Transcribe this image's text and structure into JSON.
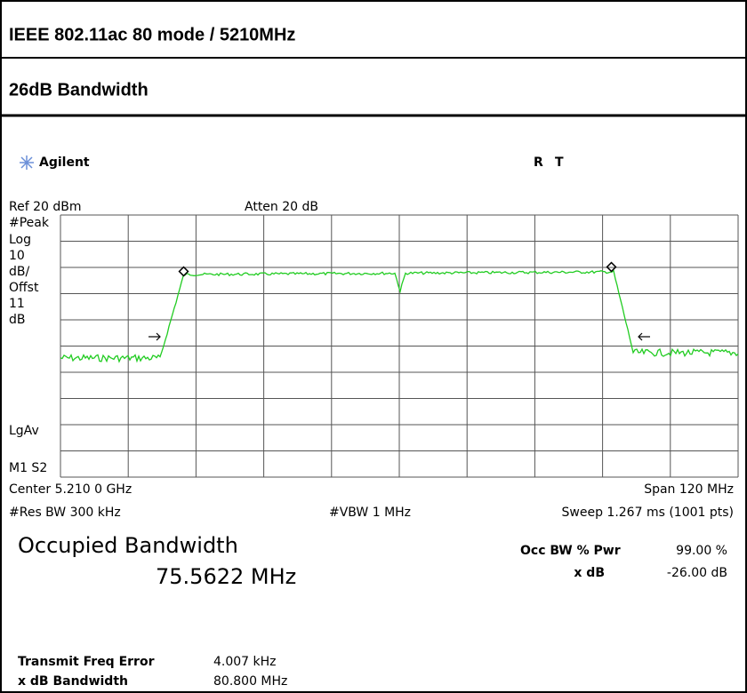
{
  "header": {
    "title": "IEEE 802.11ac 80 mode / 5210MHz",
    "subtitle": "26dB Bandwidth"
  },
  "screen": {
    "brand": "Agilent",
    "status": [
      "R",
      "T"
    ],
    "top": {
      "ref": "Ref 20 dBm",
      "atten": "Atten 20 dB"
    },
    "left_labels": [
      "#Peak",
      "Log",
      "10",
      "dB/",
      "Offst",
      "11",
      "dB",
      "LgAv",
      "M1 S2"
    ],
    "bottom": {
      "center": "Center 5.210 0 GHz",
      "span": "Span 120 MHz",
      "res_bw": "#Res BW 300 kHz",
      "vbw": "#VBW 1 MHz",
      "sweep": "Sweep 1.267 ms (1001 pts)"
    },
    "measurement": {
      "title": "Occupied Bandwidth",
      "value": "75.5622 MHz",
      "occ_label": "Occ BW % Pwr",
      "occ_value": "99.00 %",
      "xdb_label": "x dB",
      "xdb_value": "-26.00 dB"
    },
    "results": [
      {
        "label": "Transmit Freq Error",
        "value": "4.007 kHz"
      },
      {
        "label": "x dB Bandwidth",
        "value": "80.800 MHz"
      }
    ]
  }
}
